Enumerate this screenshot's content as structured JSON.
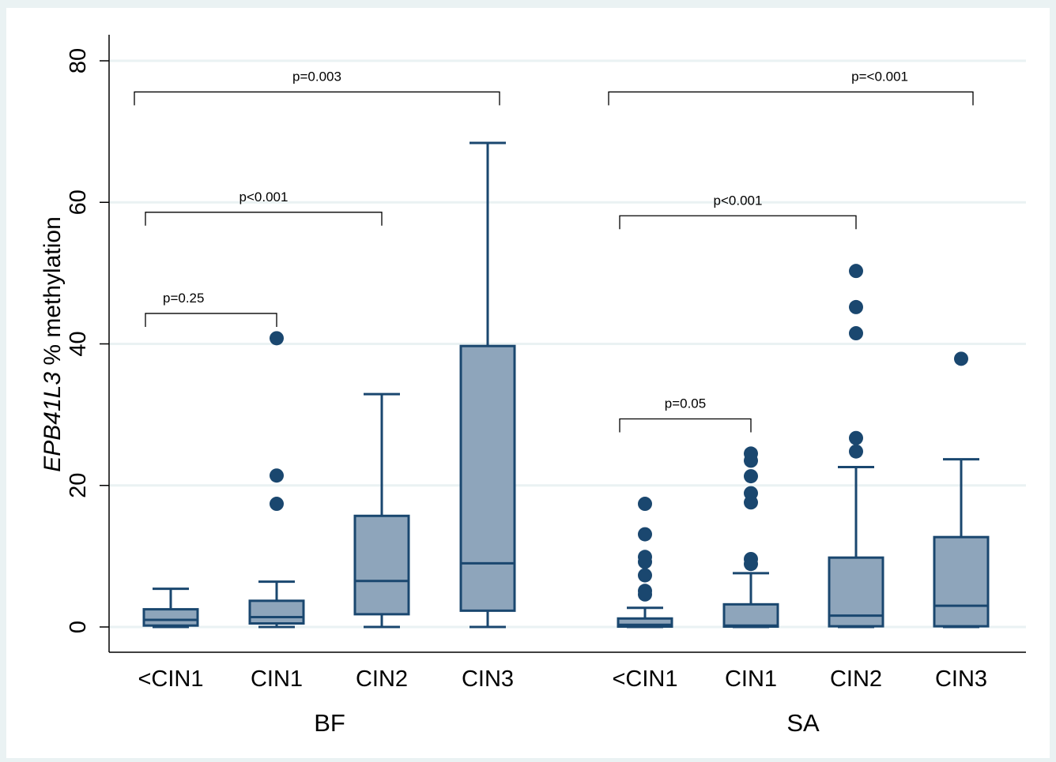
{
  "chart_data": {
    "type": "box",
    "ylabel_italic": "EPB41L3",
    "ylabel_rest": " % methylation",
    "ylim": [
      0,
      80
    ],
    "yticks": [
      0,
      20,
      40,
      60,
      80
    ],
    "grid": true,
    "groups": [
      {
        "name": "BF",
        "boxes": [
          {
            "category": "<CIN1",
            "whisker_low": 0,
            "q1": 0.2,
            "median": 1.0,
            "q3": 2.5,
            "whisker_high": 5.4,
            "outliers": []
          },
          {
            "category": "CIN1",
            "whisker_low": 0,
            "q1": 0.5,
            "median": 1.4,
            "q3": 3.7,
            "whisker_high": 6.4,
            "outliers": [
              17.4,
              21.4,
              40.8
            ]
          },
          {
            "category": "CIN2",
            "whisker_low": 0,
            "q1": 1.8,
            "median": 6.5,
            "q3": 15.7,
            "whisker_high": 32.9,
            "outliers": []
          },
          {
            "category": "CIN3",
            "whisker_low": 0,
            "q1": 2.3,
            "median": 9.0,
            "q3": 39.7,
            "whisker_high": 68.4,
            "outliers": []
          }
        ]
      },
      {
        "name": "SA",
        "boxes": [
          {
            "category": "<CIN1",
            "whisker_low": 0,
            "q1": 0.05,
            "median": 0.3,
            "q3": 1.2,
            "whisker_high": 2.7,
            "outliers": [
              4.6,
              5.1,
              7.3,
              9.2,
              9.9,
              13.1,
              17.4
            ]
          },
          {
            "category": "CIN1",
            "whisker_low": 0,
            "q1": 0.05,
            "median": 0.2,
            "q3": 3.2,
            "whisker_high": 7.6,
            "outliers": [
              8.9,
              9.6,
              17.6,
              18.9,
              21.3,
              23.5,
              24.5
            ]
          },
          {
            "category": "CIN2",
            "whisker_low": 0,
            "q1": 0.1,
            "median": 1.6,
            "q3": 9.8,
            "whisker_high": 22.6,
            "outliers": [
              24.8,
              26.7,
              41.5,
              45.2,
              50.3
            ]
          },
          {
            "category": "CIN3",
            "whisker_low": 0,
            "q1": 0.1,
            "median": 3.0,
            "q3": 12.7,
            "whisker_high": 23.7,
            "outliers": [
              37.9
            ]
          }
        ]
      }
    ],
    "annotations": [
      {
        "label": "p=0.003",
        "group": 0,
        "from": 0,
        "to": 3,
        "y": 75.6,
        "label_pos": "center"
      },
      {
        "label": "p<0.001",
        "group": 0,
        "from": 0,
        "to": 2,
        "y": 58.6,
        "label_pos": "center"
      },
      {
        "label": "p=0.25",
        "group": 0,
        "from": 0,
        "to": 1,
        "y": 44.3,
        "label_pos": "left"
      },
      {
        "label": "p=<0.001",
        "group": 1,
        "from": 0,
        "to": 3,
        "y": 75.6,
        "label_pos": "right"
      },
      {
        "label": "p<0.001",
        "group": 1,
        "from": 0,
        "to": 2,
        "y": 58.1,
        "label_pos": "center"
      },
      {
        "label": "p=0.05",
        "group": 1,
        "from": 0,
        "to": 1,
        "y": 29.4,
        "label_pos": "center"
      }
    ],
    "colors": {
      "box_fill": "#8ea5bb",
      "box_stroke": "#1a476f",
      "outlier": "#1a476f",
      "grid": "#eaf2f3",
      "outer_background": "#eaf2f3",
      "plot_background": "#ffffff"
    }
  }
}
